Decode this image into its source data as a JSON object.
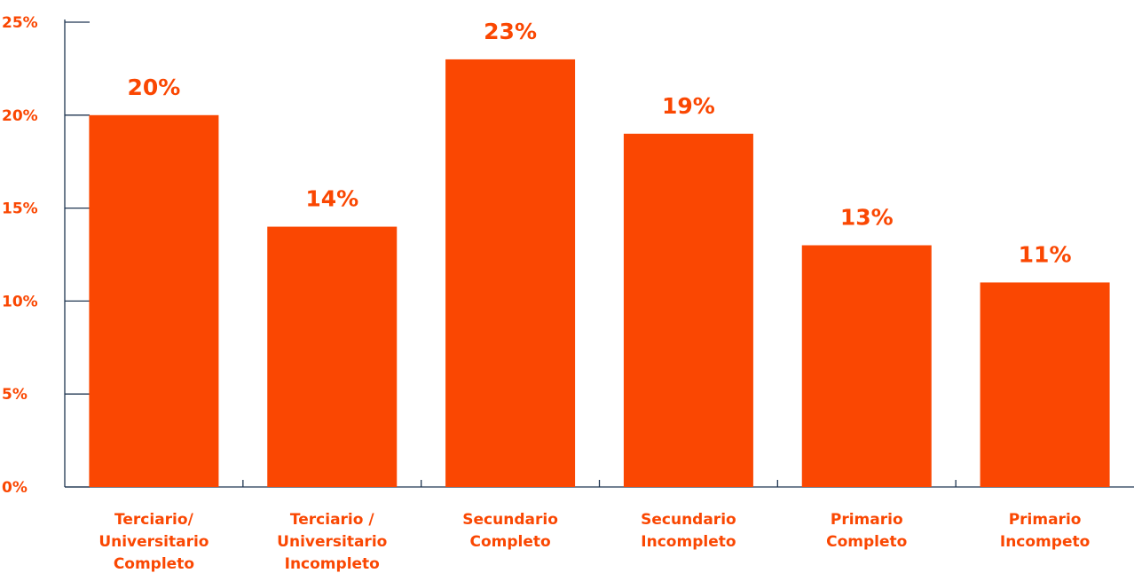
{
  "chart_data": {
    "type": "bar",
    "title": "",
    "xlabel": "",
    "ylabel": "",
    "ylim": [
      0,
      25
    ],
    "y_ticks": [
      0,
      5,
      10,
      15,
      20,
      25
    ],
    "y_tick_labels": [
      "0%",
      "5%",
      "10%",
      "15%",
      "20%",
      "25%"
    ],
    "categories": [
      [
        "Terciario/",
        "Universitario",
        "Completo"
      ],
      [
        "Terciario /",
        "Universitario",
        "Incompleto"
      ],
      [
        "Secundario",
        "Completo"
      ],
      [
        "Secundario",
        "Incompleto"
      ],
      [
        "Primario",
        "Completo"
      ],
      [
        "Primario",
        "Incompeto"
      ]
    ],
    "values": [
      20,
      14,
      23,
      19,
      13,
      11
    ],
    "data_labels": [
      "20%",
      "14%",
      "23%",
      "19%",
      "13%",
      "11%"
    ],
    "grid": false,
    "legend": "none"
  },
  "colors": {
    "bar": "#FA4702",
    "text": "#FA4702",
    "axis": "#1F3550"
  }
}
